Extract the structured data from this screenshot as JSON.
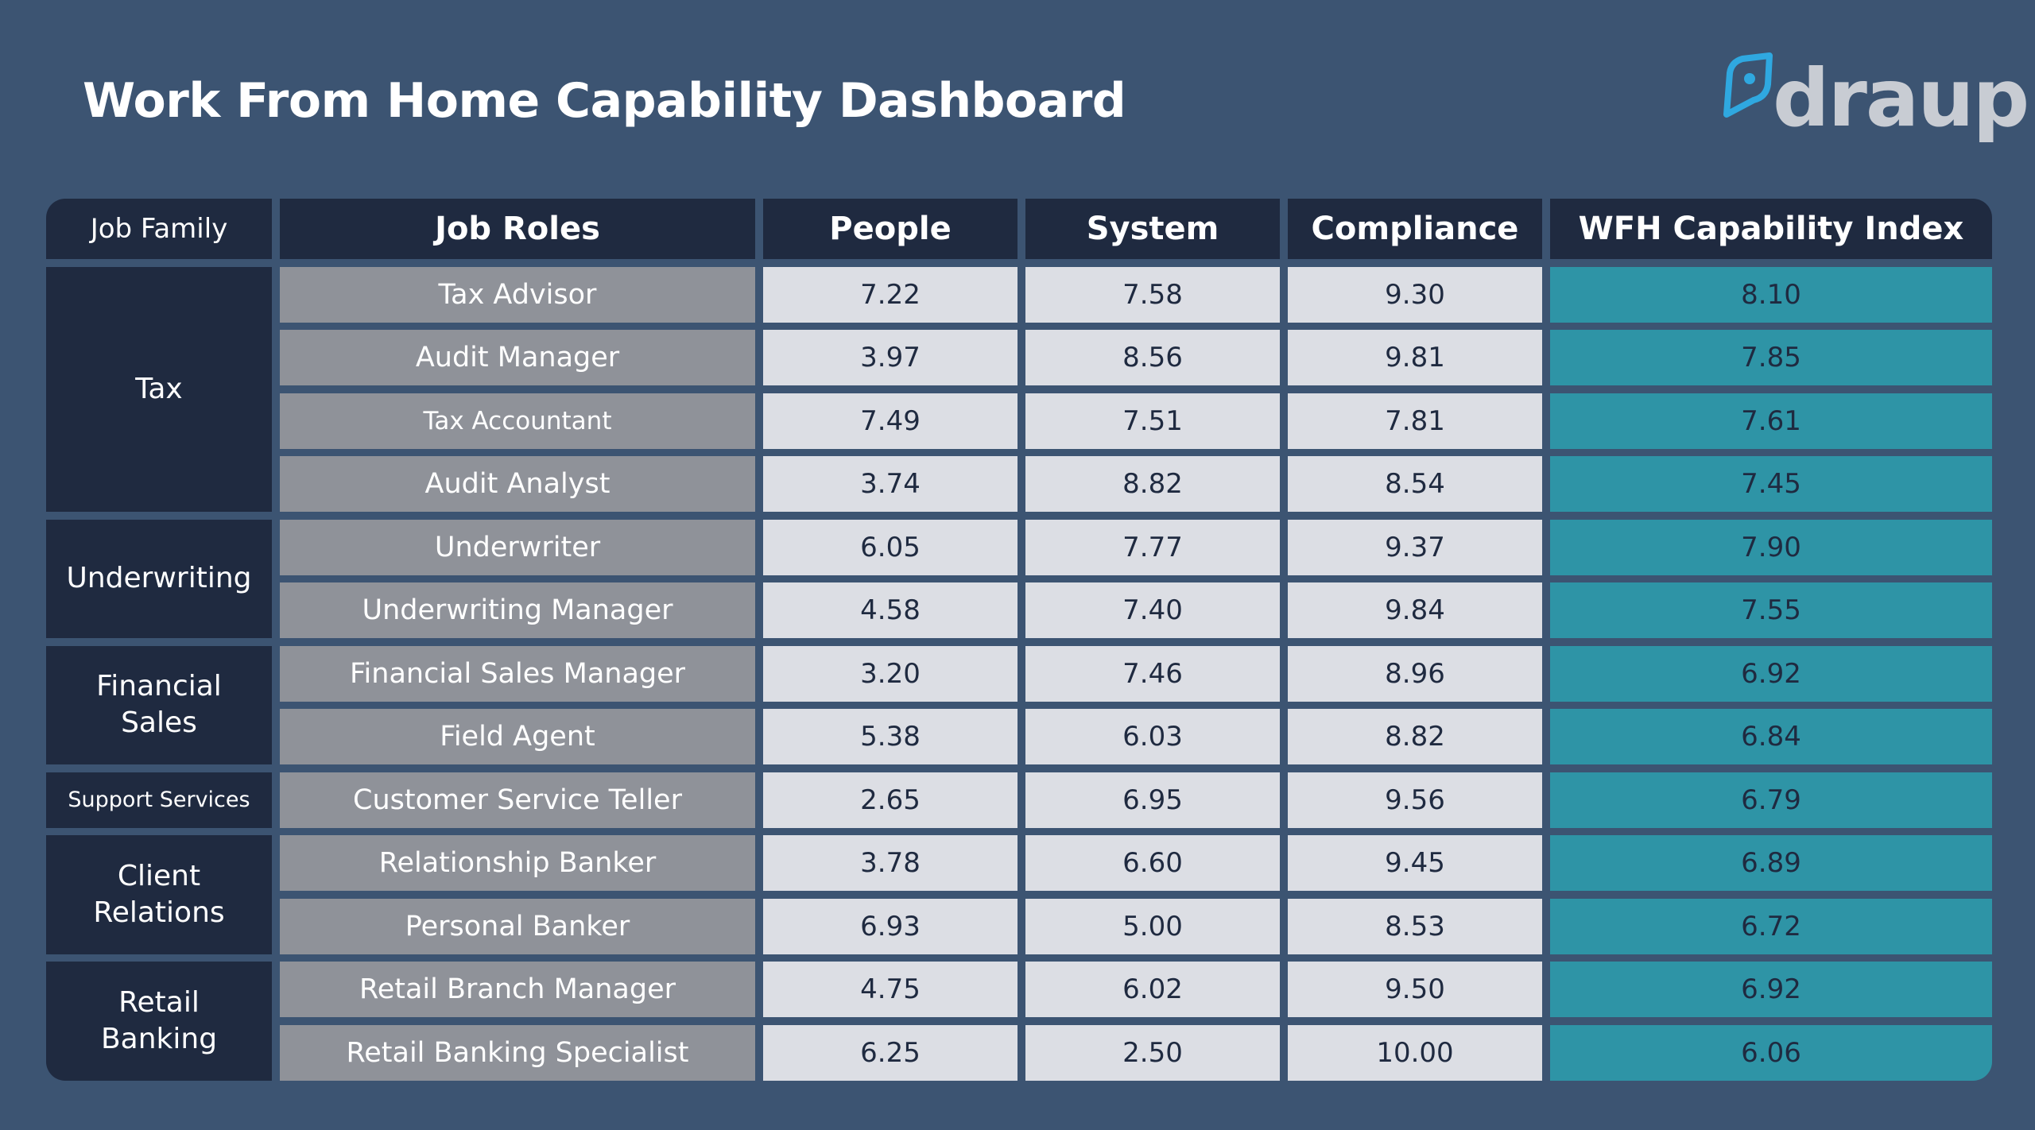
{
  "title": "Work From Home Capability Dashboard",
  "brand": {
    "name": "draup",
    "accent_color": "#2fa8e0",
    "icon": "compass-pin-icon"
  },
  "colors": {
    "background": "#3c5472",
    "header": "#1f2a40",
    "role_cell": "#8f9299",
    "value_cell": "#dcdee4",
    "index_cell": "#2e94a6"
  },
  "table": {
    "headers": [
      "Job Family",
      "Job Roles",
      "People",
      "System",
      "Compliance",
      "WFH Capability Index"
    ],
    "families": [
      {
        "name": "Tax",
        "rows": 4
      },
      {
        "name": "Underwriting",
        "rows": 2
      },
      {
        "name": "Financial Sales",
        "rows": 2
      },
      {
        "name": "Support Services",
        "rows": 1
      },
      {
        "name": "Client Relations",
        "rows": 2
      },
      {
        "name": "Retail Banking",
        "rows": 2
      }
    ],
    "rows": [
      {
        "role": "Tax Advisor",
        "people": "7.22",
        "system": "7.58",
        "compliance": "9.30",
        "index": "8.10"
      },
      {
        "role": "Audit Manager",
        "people": "3.97",
        "system": "8.56",
        "compliance": "9.81",
        "index": "7.85"
      },
      {
        "role": "Tax Accountant",
        "people": "7.49",
        "system": "7.51",
        "compliance": "7.81",
        "index": "7.61"
      },
      {
        "role": "Audit Analyst",
        "people": "3.74",
        "system": "8.82",
        "compliance": "8.54",
        "index": "7.45"
      },
      {
        "role": "Underwriter",
        "people": "6.05",
        "system": "7.77",
        "compliance": "9.37",
        "index": "7.90"
      },
      {
        "role": "Underwriting Manager",
        "people": "4.58",
        "system": "7.40",
        "compliance": "9.84",
        "index": "7.55"
      },
      {
        "role": "Financial Sales Manager",
        "people": "3.20",
        "system": "7.46",
        "compliance": "8.96",
        "index": "6.92"
      },
      {
        "role": "Field Agent",
        "people": "5.38",
        "system": "6.03",
        "compliance": "8.82",
        "index": "6.84"
      },
      {
        "role": "Customer Service Teller",
        "people": "2.65",
        "system": "6.95",
        "compliance": "9.56",
        "index": "6.79"
      },
      {
        "role": "Relationship Banker",
        "people": "3.78",
        "system": "6.60",
        "compliance": "9.45",
        "index": "6.89"
      },
      {
        "role": "Personal Banker",
        "people": "6.93",
        "system": "5.00",
        "compliance": "8.53",
        "index": "6.72"
      },
      {
        "role": "Retail Branch Manager",
        "people": "4.75",
        "system": "6.02",
        "compliance": "9.50",
        "index": "6.92"
      },
      {
        "role": "Retail Banking Specialist",
        "people": "6.25",
        "system": "2.50",
        "compliance": "10.00",
        "index": "6.06"
      }
    ]
  }
}
